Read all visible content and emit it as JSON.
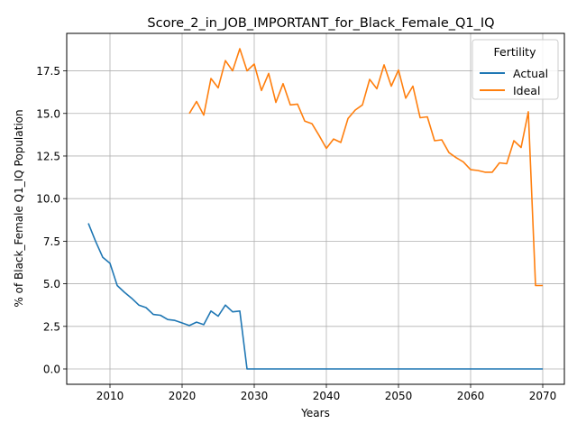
{
  "chart_data": {
    "type": "line",
    "title": "Score_2_in_JOB_IMPORTANT_for_Black_Female_Q1_IQ",
    "xlabel": "Years",
    "ylabel": "% of Black_Female Q1_IQ Population",
    "xlim": [
      2004,
      2073
    ],
    "ylim": [
      -0.9,
      19.7
    ],
    "xticks": [
      2010,
      2020,
      2030,
      2040,
      2050,
      2060,
      2070
    ],
    "yticks": [
      0.0,
      2.5,
      5.0,
      7.5,
      10.0,
      12.5,
      15.0,
      17.5
    ],
    "ytick_labels": [
      "0.0",
      "2.5",
      "5.0",
      "7.5",
      "10.0",
      "12.5",
      "15.0",
      "17.5"
    ],
    "grid": true,
    "legend": {
      "title": "Fertility",
      "position": "top-right"
    },
    "series": [
      {
        "name": "Actual",
        "color": "#1f77b4",
        "x": [
          2007,
          2008,
          2009,
          2010,
          2011,
          2012,
          2013,
          2014,
          2015,
          2016,
          2017,
          2018,
          2019,
          2020,
          2021,
          2022,
          2023,
          2024,
          2025,
          2026,
          2027,
          2028,
          2029,
          2030,
          2031,
          2032,
          2033,
          2034,
          2035,
          2036,
          2037,
          2038,
          2039,
          2040,
          2041,
          2042,
          2043,
          2044,
          2045,
          2046,
          2047,
          2048,
          2049,
          2050,
          2051,
          2052,
          2053,
          2054,
          2055,
          2056,
          2057,
          2058,
          2059,
          2060,
          2061,
          2062,
          2063,
          2064,
          2065,
          2066,
          2067,
          2068,
          2069,
          2070
        ],
        "y": [
          8.55,
          7.5,
          6.55,
          6.2,
          4.9,
          4.5,
          4.15,
          3.75,
          3.6,
          3.2,
          3.15,
          2.9,
          2.85,
          2.7,
          2.55,
          2.75,
          2.6,
          3.4,
          3.1,
          3.75,
          3.35,
          3.4,
          0.0,
          0.0,
          0.0,
          0.0,
          0.0,
          0.0,
          0.0,
          0.0,
          0.0,
          0.0,
          0.0,
          0.0,
          0.0,
          0.0,
          0.0,
          0.0,
          0.0,
          0.0,
          0.0,
          0.0,
          0.0,
          0.0,
          0.0,
          0.0,
          0.0,
          0.0,
          0.0,
          0.0,
          0.0,
          0.0,
          0.0,
          0.0,
          0.0,
          0.0,
          0.0,
          0.0,
          0.0,
          0.0,
          0.0,
          0.0,
          0.0,
          0.0
        ]
      },
      {
        "name": "Ideal",
        "color": "#ff7f0e",
        "x": [
          2021,
          2022,
          2023,
          2024,
          2025,
          2026,
          2027,
          2028,
          2029,
          2030,
          2031,
          2032,
          2033,
          2034,
          2035,
          2036,
          2037,
          2038,
          2039,
          2040,
          2041,
          2042,
          2043,
          2044,
          2045,
          2046,
          2047,
          2048,
          2049,
          2050,
          2051,
          2052,
          2053,
          2054,
          2055,
          2056,
          2057,
          2058,
          2059,
          2060,
          2061,
          2062,
          2063,
          2064,
          2065,
          2066,
          2067,
          2068,
          2069,
          2070
        ],
        "y": [
          15.0,
          15.7,
          14.9,
          17.05,
          16.5,
          18.1,
          17.5,
          18.8,
          17.5,
          17.9,
          16.35,
          17.35,
          15.65,
          16.75,
          15.5,
          15.55,
          14.55,
          14.4,
          13.7,
          12.95,
          13.5,
          13.3,
          14.7,
          15.2,
          15.5,
          17.0,
          16.45,
          17.85,
          16.6,
          17.55,
          15.9,
          16.6,
          14.75,
          14.8,
          13.4,
          13.45,
          12.7,
          12.4,
          12.15,
          11.7,
          11.65,
          11.55,
          11.55,
          12.1,
          12.05,
          13.4,
          13.0,
          15.1,
          4.9,
          4.9
        ]
      }
    ]
  }
}
